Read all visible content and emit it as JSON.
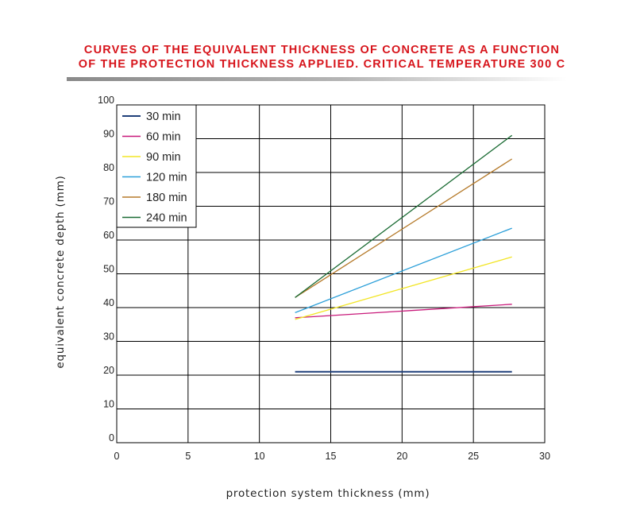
{
  "chart_data": {
    "type": "line",
    "title_lines": [
      "CURVES OF THE EQUIVALENT THICKNESS OF CONCRETE AS A FUNCTION",
      "OF THE PROTECTION THICKNESS APPLIED. CRITICAL TEMPERATURE 300 C"
    ],
    "xlabel": "protection system thickness (mm)",
    "ylabel": "equivalent concrete depth (mm)",
    "xlim": [
      0,
      30
    ],
    "ylim": [
      0,
      100
    ],
    "xticks": [
      "0",
      "5",
      "10",
      "15",
      "20",
      "25",
      "30"
    ],
    "yticks": [
      "0",
      "10",
      "20",
      "30",
      "40",
      "50",
      "60",
      "70",
      "80",
      "90",
      "100"
    ],
    "grid": true,
    "legend_position": "top-left",
    "series": [
      {
        "name": "30 min",
        "color": "#1f3f7a",
        "x": [
          12.5,
          27.7
        ],
        "y": [
          21,
          21
        ]
      },
      {
        "name": "60 min",
        "color": "#c8197a",
        "x": [
          12.5,
          27.7
        ],
        "y": [
          37,
          41
        ]
      },
      {
        "name": "90 min",
        "color": "#f2e526",
        "x": [
          12.5,
          27.7
        ],
        "y": [
          36.5,
          55
        ]
      },
      {
        "name": "120 min",
        "color": "#2b9fd9",
        "x": [
          12.5,
          27.7
        ],
        "y": [
          38.5,
          63.5
        ]
      },
      {
        "name": "180 min",
        "color": "#b57a2a",
        "x": [
          12.5,
          27.7
        ],
        "y": [
          43,
          84
        ]
      },
      {
        "name": "240 min",
        "color": "#1a6b33",
        "x": [
          12.5,
          27.7
        ],
        "y": [
          43,
          91
        ]
      }
    ]
  }
}
